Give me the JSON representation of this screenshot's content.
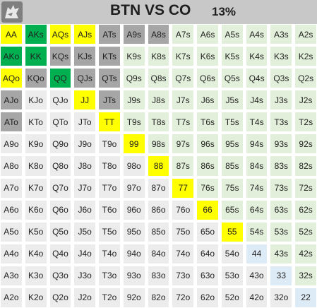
{
  "header": {
    "title": "BTN VS CO",
    "percentage": "13%"
  },
  "legend_colors": {
    "yellow": "#ffff00",
    "green": "#00b050",
    "gray": "#a6a6a6",
    "light_green": "#e2efda",
    "pale_gray": "#ececec",
    "light_blue": "#ddebf7"
  },
  "rows": [
    [
      {
        "label": "AA",
        "color": "yellow"
      },
      {
        "label": "AKs",
        "color": "green"
      },
      {
        "label": "AQs",
        "color": "yellow"
      },
      {
        "label": "AJs",
        "color": "yellow"
      },
      {
        "label": "ATs",
        "color": "gray"
      },
      {
        "label": "A9s",
        "color": "gray"
      },
      {
        "label": "A8s",
        "color": "gray"
      },
      {
        "label": "A7s",
        "color": "light"
      },
      {
        "label": "A6s",
        "color": "light"
      },
      {
        "label": "A5s",
        "color": "light"
      },
      {
        "label": "A4s",
        "color": "light"
      },
      {
        "label": "A3s",
        "color": "light"
      },
      {
        "label": "A2s",
        "color": "light"
      }
    ],
    [
      {
        "label": "AKo",
        "color": "green"
      },
      {
        "label": "KK",
        "color": "green"
      },
      {
        "label": "KQs",
        "color": "gray"
      },
      {
        "label": "KJs",
        "color": "gray"
      },
      {
        "label": "KTs",
        "color": "gray"
      },
      {
        "label": "K9s",
        "color": "light"
      },
      {
        "label": "K8s",
        "color": "light"
      },
      {
        "label": "K7s",
        "color": "light"
      },
      {
        "label": "K6s",
        "color": "light"
      },
      {
        "label": "K5s",
        "color": "light"
      },
      {
        "label": "K4s",
        "color": "light"
      },
      {
        "label": "K3s",
        "color": "light"
      },
      {
        "label": "K2s",
        "color": "light"
      }
    ],
    [
      {
        "label": "AQo",
        "color": "yellow"
      },
      {
        "label": "KQo",
        "color": "gray"
      },
      {
        "label": "QQ",
        "color": "green"
      },
      {
        "label": "QJs",
        "color": "gray"
      },
      {
        "label": "QTs",
        "color": "gray"
      },
      {
        "label": "Q9s",
        "color": "light"
      },
      {
        "label": "Q8s",
        "color": "light"
      },
      {
        "label": "Q7s",
        "color": "light"
      },
      {
        "label": "Q6s",
        "color": "light"
      },
      {
        "label": "Q5s",
        "color": "light"
      },
      {
        "label": "Q4s",
        "color": "light"
      },
      {
        "label": "Q3s",
        "color": "light"
      },
      {
        "label": "Q2s",
        "color": "light"
      }
    ],
    [
      {
        "label": "AJo",
        "color": "gray"
      },
      {
        "label": "KJo",
        "color": "pale"
      },
      {
        "label": "QJo",
        "color": "pale"
      },
      {
        "label": "JJ",
        "color": "yellow"
      },
      {
        "label": "JTs",
        "color": "gray"
      },
      {
        "label": "J9s",
        "color": "light"
      },
      {
        "label": "J8s",
        "color": "light"
      },
      {
        "label": "J7s",
        "color": "light"
      },
      {
        "label": "J6s",
        "color": "light"
      },
      {
        "label": "J5s",
        "color": "light"
      },
      {
        "label": "J4s",
        "color": "light"
      },
      {
        "label": "J3s",
        "color": "light"
      },
      {
        "label": "J2s",
        "color": "light"
      }
    ],
    [
      {
        "label": "ATo",
        "color": "gray"
      },
      {
        "label": "KTo",
        "color": "pale"
      },
      {
        "label": "QTo",
        "color": "pale"
      },
      {
        "label": "JTo",
        "color": "pale"
      },
      {
        "label": "TT",
        "color": "yellow"
      },
      {
        "label": "T9s",
        "color": "light"
      },
      {
        "label": "T8s",
        "color": "light"
      },
      {
        "label": "T7s",
        "color": "light"
      },
      {
        "label": "T6s",
        "color": "light"
      },
      {
        "label": "T5s",
        "color": "light"
      },
      {
        "label": "T4s",
        "color": "light"
      },
      {
        "label": "T3s",
        "color": "light"
      },
      {
        "label": "T2s",
        "color": "light"
      }
    ],
    [
      {
        "label": "A9o",
        "color": "pale"
      },
      {
        "label": "K9o",
        "color": "pale"
      },
      {
        "label": "Q9o",
        "color": "pale"
      },
      {
        "label": "J9o",
        "color": "pale"
      },
      {
        "label": "T9o",
        "color": "pale"
      },
      {
        "label": "99",
        "color": "yellow"
      },
      {
        "label": "98s",
        "color": "light"
      },
      {
        "label": "97s",
        "color": "light"
      },
      {
        "label": "96s",
        "color": "light"
      },
      {
        "label": "95s",
        "color": "light"
      },
      {
        "label": "94s",
        "color": "light"
      },
      {
        "label": "93s",
        "color": "light"
      },
      {
        "label": "92s",
        "color": "light"
      }
    ],
    [
      {
        "label": "A8o",
        "color": "pale"
      },
      {
        "label": "K8o",
        "color": "pale"
      },
      {
        "label": "Q8o",
        "color": "pale"
      },
      {
        "label": "J8o",
        "color": "pale"
      },
      {
        "label": "T8o",
        "color": "pale"
      },
      {
        "label": "98o",
        "color": "pale"
      },
      {
        "label": "88",
        "color": "yellow"
      },
      {
        "label": "87s",
        "color": "light"
      },
      {
        "label": "86s",
        "color": "light"
      },
      {
        "label": "85s",
        "color": "light"
      },
      {
        "label": "84s",
        "color": "light"
      },
      {
        "label": "83s",
        "color": "light"
      },
      {
        "label": "82s",
        "color": "light"
      }
    ],
    [
      {
        "label": "A7o",
        "color": "pale"
      },
      {
        "label": "K7o",
        "color": "pale"
      },
      {
        "label": "Q7o",
        "color": "pale"
      },
      {
        "label": "J7o",
        "color": "pale"
      },
      {
        "label": "T7o",
        "color": "pale"
      },
      {
        "label": "97o",
        "color": "pale"
      },
      {
        "label": "87o",
        "color": "pale"
      },
      {
        "label": "77",
        "color": "yellow"
      },
      {
        "label": "76s",
        "color": "light"
      },
      {
        "label": "75s",
        "color": "light"
      },
      {
        "label": "74s",
        "color": "light"
      },
      {
        "label": "73s",
        "color": "light"
      },
      {
        "label": "72s",
        "color": "light"
      }
    ],
    [
      {
        "label": "A6o",
        "color": "pale"
      },
      {
        "label": "K6o",
        "color": "pale"
      },
      {
        "label": "Q6o",
        "color": "pale"
      },
      {
        "label": "J6o",
        "color": "pale"
      },
      {
        "label": "T6o",
        "color": "pale"
      },
      {
        "label": "96o",
        "color": "pale"
      },
      {
        "label": "86o",
        "color": "pale"
      },
      {
        "label": "76o",
        "color": "pale"
      },
      {
        "label": "66",
        "color": "yellow"
      },
      {
        "label": "65s",
        "color": "light"
      },
      {
        "label": "64s",
        "color": "light"
      },
      {
        "label": "63s",
        "color": "light"
      },
      {
        "label": "62s",
        "color": "light"
      }
    ],
    [
      {
        "label": "A5o",
        "color": "pale"
      },
      {
        "label": "K5o",
        "color": "pale"
      },
      {
        "label": "Q5o",
        "color": "pale"
      },
      {
        "label": "J5o",
        "color": "pale"
      },
      {
        "label": "T5o",
        "color": "pale"
      },
      {
        "label": "95o",
        "color": "pale"
      },
      {
        "label": "85o",
        "color": "pale"
      },
      {
        "label": "75o",
        "color": "pale"
      },
      {
        "label": "65o",
        "color": "pale"
      },
      {
        "label": "55",
        "color": "yellow"
      },
      {
        "label": "54s",
        "color": "light"
      },
      {
        "label": "53s",
        "color": "light"
      },
      {
        "label": "52s",
        "color": "light"
      }
    ],
    [
      {
        "label": "A4o",
        "color": "pale"
      },
      {
        "label": "K4o",
        "color": "pale"
      },
      {
        "label": "Q4o",
        "color": "pale"
      },
      {
        "label": "J4o",
        "color": "pale"
      },
      {
        "label": "T4o",
        "color": "pale"
      },
      {
        "label": "94o",
        "color": "pale"
      },
      {
        "label": "84o",
        "color": "pale"
      },
      {
        "label": "74o",
        "color": "pale"
      },
      {
        "label": "64o",
        "color": "pale"
      },
      {
        "label": "54o",
        "color": "pale"
      },
      {
        "label": "44",
        "color": "blue"
      },
      {
        "label": "43s",
        "color": "light"
      },
      {
        "label": "42s",
        "color": "light"
      }
    ],
    [
      {
        "label": "A3o",
        "color": "pale"
      },
      {
        "label": "K3o",
        "color": "pale"
      },
      {
        "label": "Q3o",
        "color": "pale"
      },
      {
        "label": "J3o",
        "color": "pale"
      },
      {
        "label": "T3o",
        "color": "pale"
      },
      {
        "label": "93o",
        "color": "pale"
      },
      {
        "label": "83o",
        "color": "pale"
      },
      {
        "label": "73o",
        "color": "pale"
      },
      {
        "label": "63o",
        "color": "pale"
      },
      {
        "label": "53o",
        "color": "pale"
      },
      {
        "label": "43o",
        "color": "pale"
      },
      {
        "label": "33",
        "color": "blue"
      },
      {
        "label": "32s",
        "color": "light"
      }
    ],
    [
      {
        "label": "A2o",
        "color": "pale"
      },
      {
        "label": "K2o",
        "color": "pale"
      },
      {
        "label": "Q2o",
        "color": "pale"
      },
      {
        "label": "J2o",
        "color": "pale"
      },
      {
        "label": "T2o",
        "color": "pale"
      },
      {
        "label": "92o",
        "color": "pale"
      },
      {
        "label": "82o",
        "color": "pale"
      },
      {
        "label": "72o",
        "color": "pale"
      },
      {
        "label": "62o",
        "color": "pale"
      },
      {
        "label": "52o",
        "color": "pale"
      },
      {
        "label": "42o",
        "color": "pale"
      },
      {
        "label": "32o",
        "color": "pale"
      },
      {
        "label": "22",
        "color": "blue"
      }
    ]
  ]
}
